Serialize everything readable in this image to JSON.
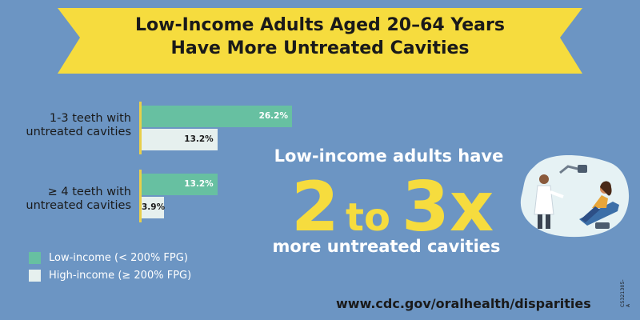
{
  "title": {
    "line1": "Low-Income Adults Aged 20–64 Years",
    "line2": "Have More Untreated Cavities"
  },
  "colors": {
    "background": "#6c95c3",
    "banner": "#f6dc3e",
    "low_income": "#67c0a1",
    "high_income": "#e6f0ee",
    "accent_text": "#f6dc3e"
  },
  "chart_data": {
    "type": "bar",
    "orientation": "horizontal",
    "categories": [
      "1-3 teeth with untreated cavities",
      "≥ 4 teeth with untreated cavities"
    ],
    "series": [
      {
        "name": "Low-income (< 200% FPG)",
        "values": [
          26.2,
          13.2
        ]
      },
      {
        "name": "High-income (≥ 200% FPG)",
        "values": [
          13.2,
          3.9
        ]
      }
    ],
    "value_labels": [
      [
        "26.2%",
        "13.2%"
      ],
      [
        "13.2%",
        "3.9%"
      ]
    ],
    "unit": "%",
    "xlim": [
      0,
      100
    ],
    "grid": false,
    "legend_position": "bottom-left"
  },
  "categories_text": [
    {
      "line1": "1-3 teeth with",
      "line2": "untreated cavities"
    },
    {
      "line1": "≥ 4 teeth with",
      "line2": "untreated cavities"
    }
  ],
  "legend": [
    {
      "label": "Low-income (< 200% FPG)",
      "color": "#67c0a1"
    },
    {
      "label": "High-income (≥ 200% FPG)",
      "color": "#e6f0ee"
    }
  ],
  "callout": {
    "top": "Low-income adults have",
    "big_left": "2",
    "big_mid": "to",
    "big_right": "3x",
    "bottom": "more untreated cavities"
  },
  "footer": {
    "url": "www.cdc.gov/oralhealth/disparities",
    "code": "CS321305-A"
  },
  "illustration": {
    "icon": "dentist-and-patient-illustration"
  }
}
